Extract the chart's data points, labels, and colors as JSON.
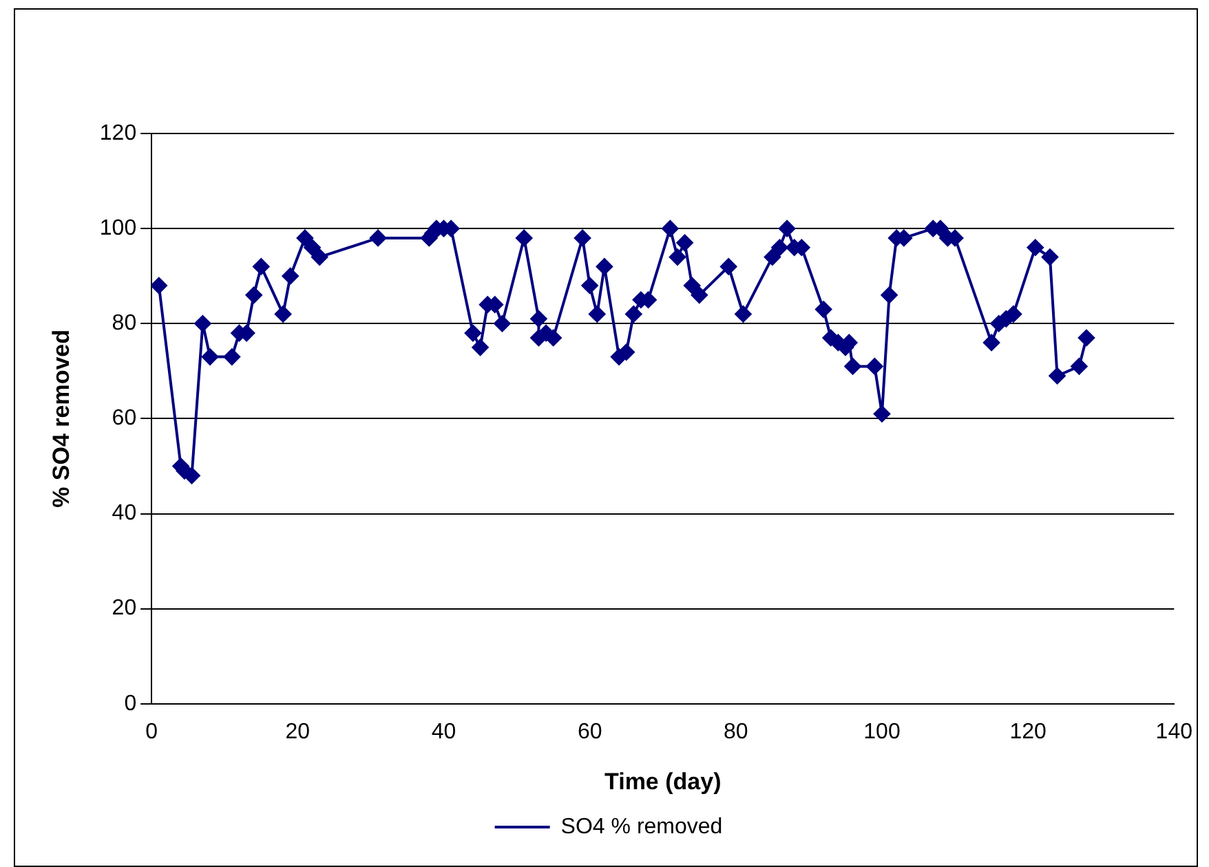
{
  "chart_data": {
    "type": "line",
    "xlabel": "Time (day)",
    "ylabel": "% SO4 removed",
    "x": [
      1,
      4,
      4.5,
      5.5,
      7,
      8,
      11,
      12,
      13,
      14,
      15,
      18,
      19,
      21,
      22,
      23,
      31,
      38,
      38.5,
      39,
      40,
      41,
      44,
      45,
      46,
      47,
      48,
      51,
      53,
      53,
      54,
      55,
      59,
      60,
      61,
      62,
      64,
      65,
      66,
      67,
      68,
      71,
      72,
      73,
      74,
      75,
      79,
      81,
      85,
      86,
      87,
      88,
      89,
      92,
      93,
      94,
      95,
      95.5,
      96,
      99,
      100,
      101,
      102,
      103,
      107,
      108,
      109,
      110,
      115,
      116,
      117,
      118,
      121,
      123,
      124,
      127,
      128
    ],
    "series": [
      {
        "name": "SO4 % removed",
        "color": "#000080",
        "values": [
          88,
          50,
          49,
          48,
          80,
          73,
          73,
          78,
          78,
          86,
          92,
          82,
          90,
          98,
          96,
          94,
          98,
          98,
          99,
          100,
          100,
          100,
          78,
          75,
          84,
          84,
          80,
          98,
          81,
          77,
          78,
          77,
          98,
          88,
          82,
          92,
          73,
          74,
          82,
          85,
          85,
          100,
          94,
          97,
          88,
          86,
          92,
          82,
          94,
          96,
          100,
          96,
          96,
          83,
          77,
          76,
          75,
          76,
          71,
          71,
          61,
          86,
          98,
          98,
          100,
          100,
          98,
          98,
          76,
          80,
          81,
          82,
          96,
          94,
          69,
          71,
          77
        ]
      }
    ],
    "xlim": [
      0,
      140
    ],
    "xticks": [
      0,
      20,
      40,
      60,
      80,
      100,
      120,
      140
    ],
    "ylim": [
      0,
      120
    ],
    "yticks": [
      0,
      20,
      40,
      60,
      80,
      100,
      120
    ],
    "grid": "y",
    "legend": "bottom",
    "marker": "diamond",
    "line_style": "solid"
  }
}
